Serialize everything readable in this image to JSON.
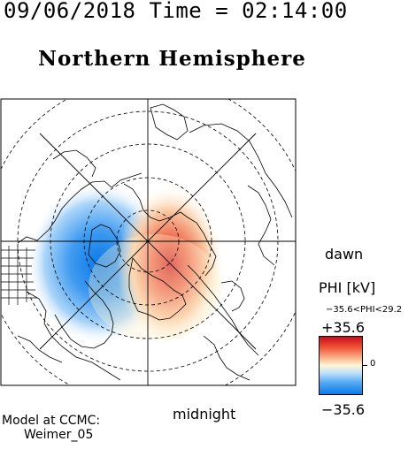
{
  "header": {
    "text": "09/06/2018 Time = 02:14:00"
  },
  "title": "Northern Hemisphere",
  "labels": {
    "dawn": "dawn",
    "midnight": "midnight"
  },
  "model": {
    "line1": "Model at CCMC:",
    "line2": "Weimer_05"
  },
  "colorbar": {
    "title": "PHI [kV]",
    "range_text": "−35.6<PHI<29.2",
    "max_label": "+35.6",
    "mid_label": "0",
    "min_label": "−35.6",
    "colors": [
      "#cc0a18",
      "#f05a3c",
      "#fbb48c",
      "#fff6d8",
      "#bfe2fb",
      "#53a9f2",
      "#0a7ae8"
    ]
  },
  "map": {
    "projection": "polar view centered on north magnetic pole",
    "potential_cells": [
      {
        "sign": "negative",
        "color": "#1e88ea"
      },
      {
        "sign": "positive",
        "color": "#e0493a"
      }
    ]
  }
}
